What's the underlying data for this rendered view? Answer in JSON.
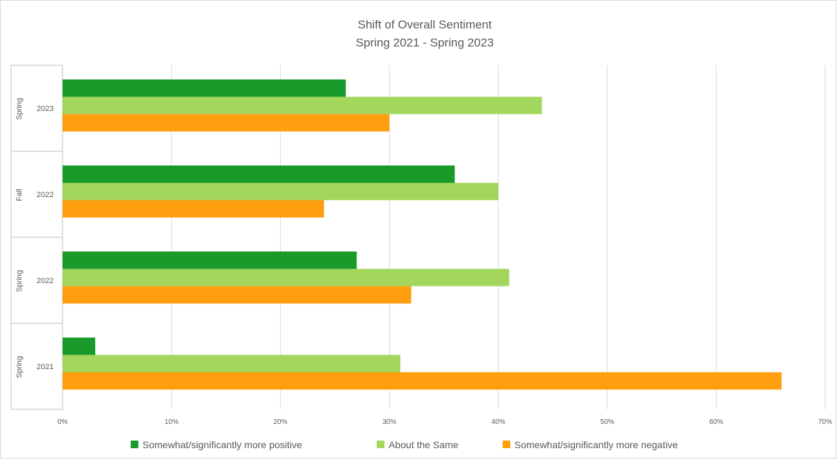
{
  "chart_data": {
    "type": "bar",
    "orientation": "horizontal",
    "title": "Shift of Overall Sentiment",
    "subtitle": "Spring 2021 - Spring 2023",
    "categories": [
      {
        "outer": "Spring",
        "inner": "2023"
      },
      {
        "outer": "Fall",
        "inner": "2022"
      },
      {
        "outer": "Spring",
        "inner": "2022"
      },
      {
        "outer": "Spring",
        "inner": "2021"
      }
    ],
    "series": [
      {
        "name": "Somewhat/significantly more positive",
        "color": "#1a9a2a",
        "values": [
          26,
          36,
          27,
          3
        ]
      },
      {
        "name": "About the Same",
        "color": "#a3d65c",
        "values": [
          44,
          40,
          41,
          31
        ]
      },
      {
        "name": "Somewhat/significantly more negative",
        "color": "#ff9f0f",
        "values": [
          30,
          24,
          32,
          66
        ]
      }
    ],
    "xlim": [
      0,
      70
    ],
    "xticks": [
      "0%",
      "10%",
      "20%",
      "30%",
      "40%",
      "50%",
      "60%",
      "70%"
    ],
    "grid": true,
    "legend_position": "bottom"
  }
}
